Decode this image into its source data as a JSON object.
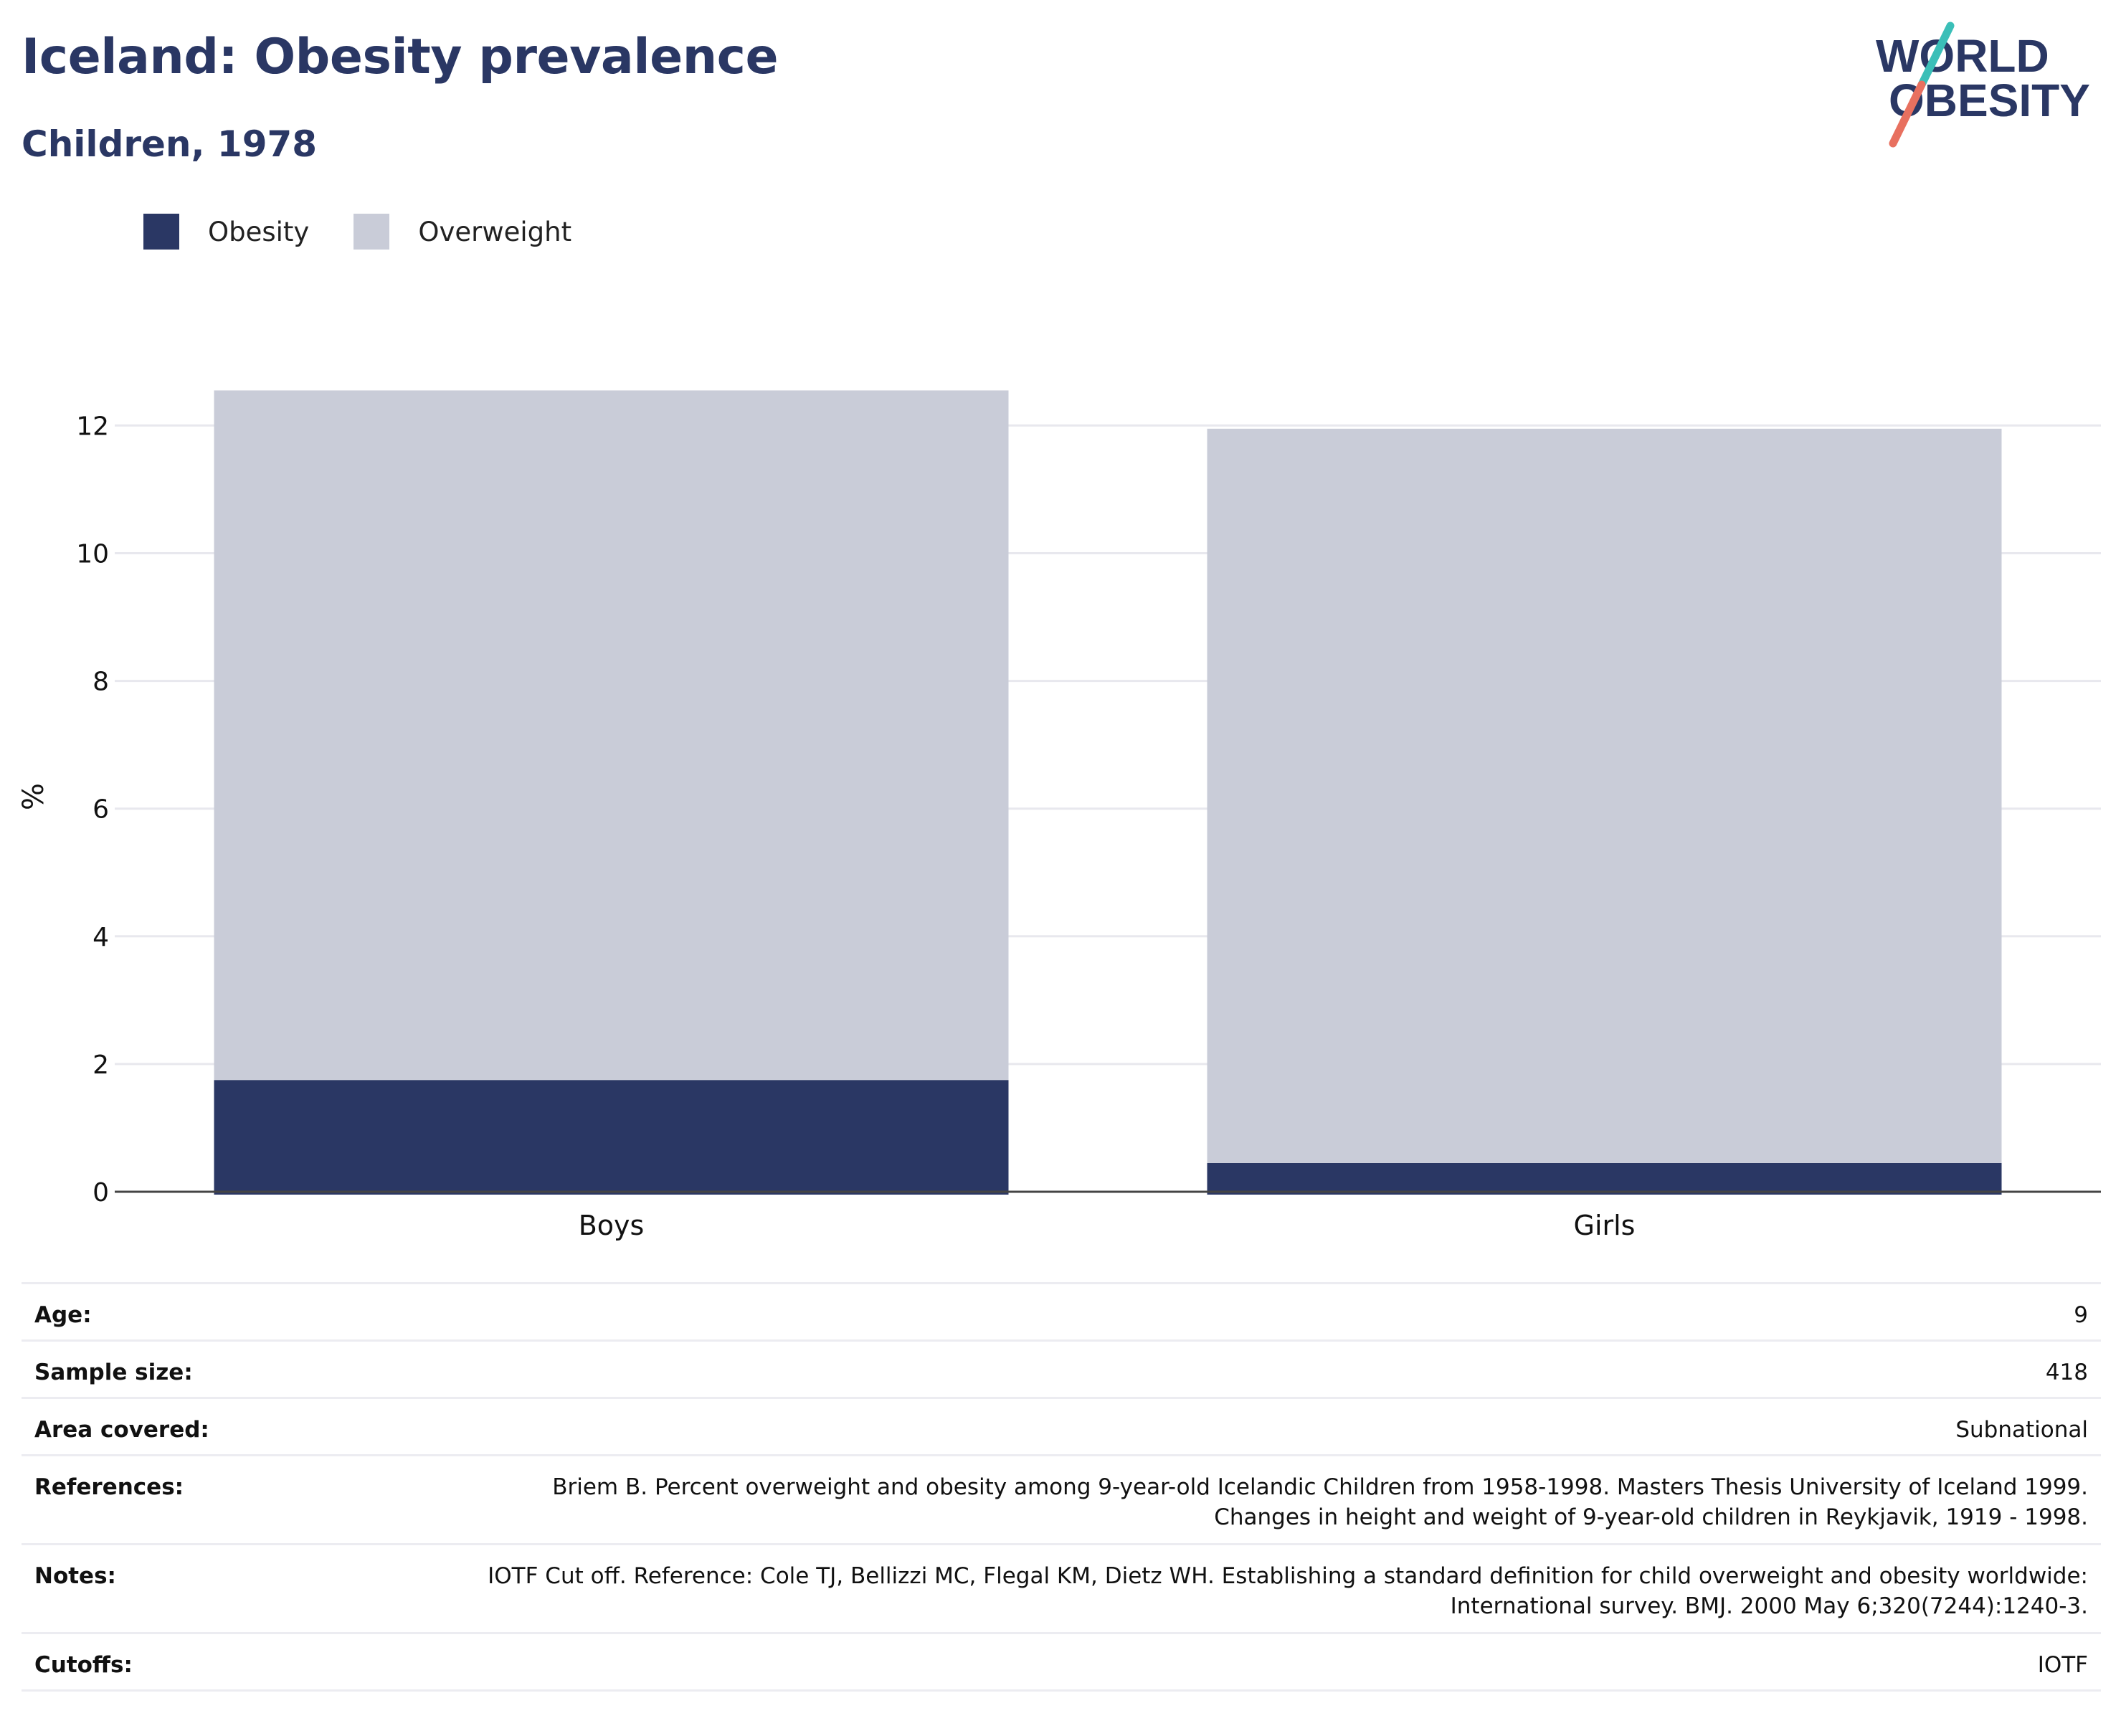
{
  "header": {
    "title": "Iceland: Obesity prevalence",
    "subtitle": "Children, 1978"
  },
  "logo": {
    "line1": "WORLD",
    "line2": "OBESITY",
    "slash_top_color": "#3bbfb8",
    "slash_bottom_color": "#e8705f",
    "text_color": "#2a3764"
  },
  "legend": {
    "items": [
      {
        "label": "Obesity",
        "color": "#2a3764"
      },
      {
        "label": "Overweight",
        "color": "#c9ccd8"
      }
    ]
  },
  "chart_data": {
    "type": "bar",
    "stacked": true,
    "categories": [
      "Boys",
      "Girls"
    ],
    "series": [
      {
        "name": "Obesity",
        "values": [
          1.75,
          0.45
        ],
        "color": "#2a3764"
      },
      {
        "name": "Overweight",
        "values": [
          10.8,
          11.5
        ],
        "color": "#c9ccd8"
      }
    ],
    "title": "Iceland: Obesity prevalence",
    "subtitle": "Children, 1978",
    "xlabel": "",
    "ylabel": "%",
    "ylim": [
      0,
      12.6
    ],
    "yticks": [
      "0",
      "2",
      "4",
      "6",
      "8",
      "10",
      "12"
    ],
    "grid": true,
    "legend_position": "top-left"
  },
  "metadata": {
    "rows": [
      {
        "label": "Age:",
        "value": "9"
      },
      {
        "label": "Sample size:",
        "value": "418"
      },
      {
        "label": "Area covered:",
        "value": "Subnational"
      },
      {
        "label": "References:",
        "value": "Briem B. Percent overweight and obesity among 9-year-old Icelandic Children from 1958-1998. Masters Thesis University of Iceland 1999. Changes in height and weight of 9-year-old children in Reykjavik, 1919 - 1998."
      },
      {
        "label": "Notes:",
        "value": "IOTF Cut off. Reference: Cole TJ, Bellizzi MC, Flegal KM, Dietz WH. Establishing a standard definition for child overweight and obesity worldwide: International survey. BMJ. 2000 May 6;320(7244):1240-3."
      },
      {
        "label": "Cutoffs:",
        "value": "IOTF"
      }
    ]
  }
}
